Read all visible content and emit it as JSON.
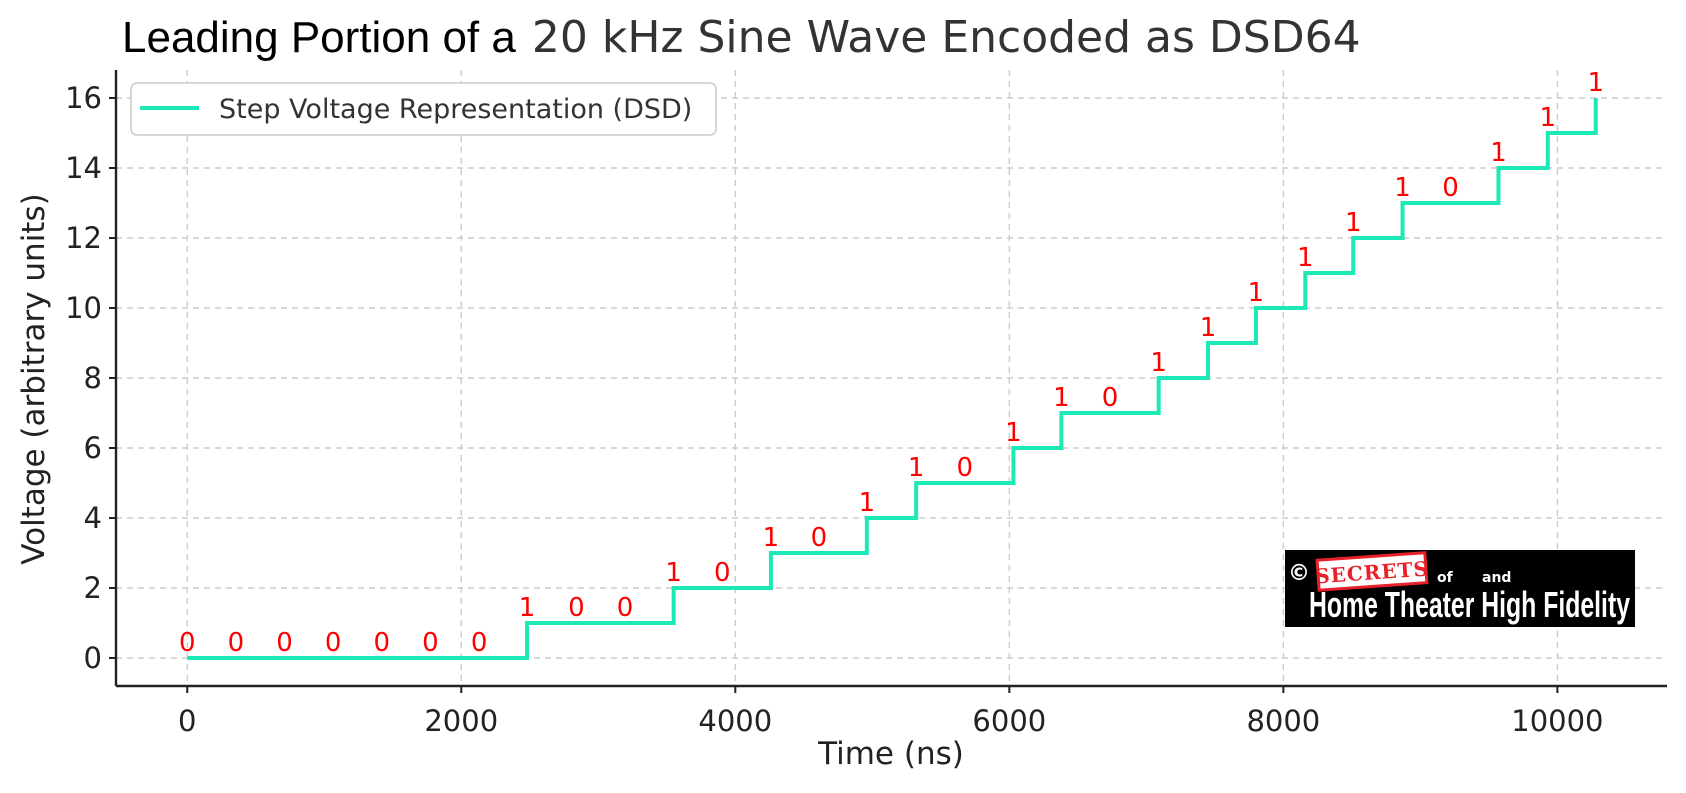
{
  "chart_data": {
    "type": "line",
    "step": "post",
    "title_part1": "Leading Portion of a",
    "title_part2": "20 kHz Sine Wave Encoded as DSD64",
    "xlabel": "Time (ns)",
    "ylabel": "Voltage (arbitrary units)",
    "xlim": [
      -520,
      10800
    ],
    "ylim": [
      -0.8,
      16.8
    ],
    "xticks": [
      0,
      2000,
      4000,
      6000,
      8000,
      10000
    ],
    "yticks": [
      0,
      2,
      4,
      6,
      8,
      10,
      12,
      14,
      16
    ],
    "grid": true,
    "legend": {
      "position": "top-left",
      "entries": [
        "Step Voltage Representation (DSD)"
      ]
    },
    "series": [
      {
        "name": "Step Voltage Representation (DSD)",
        "color": "#1de9b6",
        "x": [
          0,
          2480,
          3550,
          4260,
          4960,
          5320,
          6030,
          6380,
          7090,
          7450,
          7800,
          8160,
          8510,
          8870,
          9570,
          9930,
          10280
        ],
        "y": [
          0,
          1,
          2,
          3,
          4,
          5,
          6,
          7,
          8,
          9,
          10,
          11,
          12,
          13,
          14,
          15,
          16
        ]
      }
    ],
    "bit_color": "#ff0000",
    "bits": [
      {
        "t": 0,
        "v": 0,
        "bit": "0"
      },
      {
        "t": 355,
        "v": 0,
        "bit": "0"
      },
      {
        "t": 710,
        "v": 0,
        "bit": "0"
      },
      {
        "t": 1065,
        "v": 0,
        "bit": "0"
      },
      {
        "t": 1420,
        "v": 0,
        "bit": "0"
      },
      {
        "t": 1775,
        "v": 0,
        "bit": "0"
      },
      {
        "t": 2130,
        "v": 0,
        "bit": "0"
      },
      {
        "t": 2480,
        "v": 1,
        "bit": "1"
      },
      {
        "t": 2840,
        "v": 1,
        "bit": "0"
      },
      {
        "t": 3195,
        "v": 1,
        "bit": "0"
      },
      {
        "t": 3550,
        "v": 2,
        "bit": "1"
      },
      {
        "t": 3905,
        "v": 2,
        "bit": "0"
      },
      {
        "t": 4260,
        "v": 3,
        "bit": "1"
      },
      {
        "t": 4610,
        "v": 3,
        "bit": "0"
      },
      {
        "t": 4960,
        "v": 4,
        "bit": "1"
      },
      {
        "t": 5320,
        "v": 5,
        "bit": "1"
      },
      {
        "t": 5675,
        "v": 5,
        "bit": "0"
      },
      {
        "t": 6030,
        "v": 6,
        "bit": "1"
      },
      {
        "t": 6380,
        "v": 7,
        "bit": "1"
      },
      {
        "t": 6735,
        "v": 7,
        "bit": "0"
      },
      {
        "t": 7090,
        "v": 8,
        "bit": "1"
      },
      {
        "t": 7450,
        "v": 9,
        "bit": "1"
      },
      {
        "t": 7800,
        "v": 10,
        "bit": "1"
      },
      {
        "t": 8160,
        "v": 11,
        "bit": "1"
      },
      {
        "t": 8510,
        "v": 12,
        "bit": "1"
      },
      {
        "t": 8870,
        "v": 13,
        "bit": "1"
      },
      {
        "t": 9220,
        "v": 13,
        "bit": "0"
      },
      {
        "t": 9570,
        "v": 14,
        "bit": "1"
      },
      {
        "t": 9930,
        "v": 15,
        "bit": "1"
      },
      {
        "t": 10280,
        "v": 16,
        "bit": "1"
      }
    ]
  },
  "watermark": {
    "copyright": "©",
    "stamp": "SECRETS",
    "of": "of",
    "and": "and",
    "name": "Home Theater High Fidelity"
  }
}
